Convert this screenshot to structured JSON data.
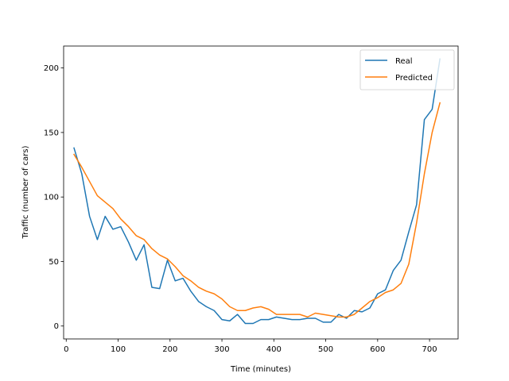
{
  "chart_data": {
    "type": "line",
    "title": "",
    "xlabel": "Time (minutes)",
    "ylabel": "Traffic (number of cars)",
    "xlim": [
      -5,
      755
    ],
    "ylim": [
      -10,
      217
    ],
    "xticks": [
      0,
      100,
      200,
      300,
      400,
      500,
      600,
      700
    ],
    "yticks": [
      0,
      50,
      100,
      150,
      200
    ],
    "grid": false,
    "legend_position": "top-right",
    "x": [
      15,
      30,
      45,
      60,
      75,
      90,
      105,
      120,
      135,
      150,
      165,
      180,
      195,
      210,
      225,
      240,
      255,
      270,
      285,
      300,
      315,
      330,
      345,
      360,
      375,
      390,
      405,
      420,
      435,
      450,
      465,
      480,
      495,
      510,
      525,
      540,
      555,
      570,
      585,
      600,
      615,
      630,
      645,
      660,
      675,
      690,
      705,
      720
    ],
    "series": [
      {
        "name": "Real",
        "color": "#1f77b4",
        "values": [
          138,
          118,
          85,
          67,
          85,
          75,
          77,
          65,
          51,
          63,
          30,
          29,
          51,
          35,
          37,
          27,
          19,
          15,
          12,
          5,
          4,
          9,
          2,
          2,
          5,
          5,
          7,
          6,
          5,
          5,
          6,
          6,
          3,
          3,
          9,
          6,
          12,
          11,
          14,
          25,
          28,
          43,
          51,
          73,
          94,
          160,
          168,
          207
        ]
      },
      {
        "name": "Predicted",
        "color": "#ff7f0e",
        "values": [
          133,
          123,
          112,
          101,
          96,
          91,
          83,
          77,
          70,
          67,
          60,
          55,
          52,
          46,
          39,
          35,
          30,
          27,
          25,
          21,
          15,
          12,
          12,
          14,
          15,
          13,
          9,
          9,
          9,
          9,
          7,
          10,
          9,
          8,
          7,
          7,
          9,
          14,
          19,
          22,
          26,
          28,
          33,
          48,
          80,
          118,
          150,
          173
        ]
      }
    ]
  }
}
